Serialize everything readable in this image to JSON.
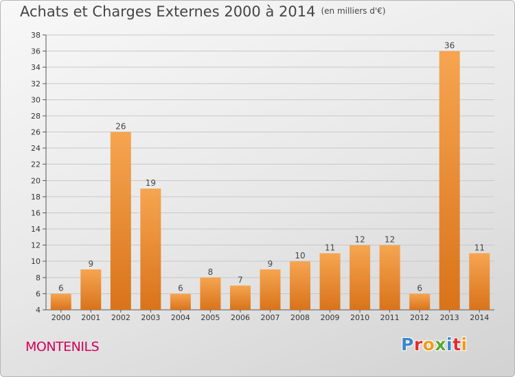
{
  "header": {
    "title": "Achats et Charges Externes 2000 à 2014",
    "unit": "(en milliers d'€)"
  },
  "footer": {
    "commune": "MONTENILS",
    "logo": [
      "P",
      "r",
      "o",
      "x",
      "i",
      "t",
      "i"
    ],
    "logo_colors": [
      "#3b87c8",
      "#e0302b",
      "#f19a1b",
      "#5aa82e",
      "#3b87c8",
      "#e0302b",
      "#f19a1b"
    ]
  },
  "chart_data": {
    "type": "bar",
    "categories": [
      "2000",
      "2001",
      "2002",
      "2003",
      "2004",
      "2005",
      "2006",
      "2007",
      "2008",
      "2009",
      "2010",
      "2011",
      "2012",
      "2013",
      "2014"
    ],
    "values": [
      6,
      9,
      26,
      19,
      6,
      8,
      7,
      9,
      10,
      11,
      12,
      12,
      6,
      36,
      11
    ],
    "ylim": [
      4,
      38
    ],
    "yticks": [
      4,
      6,
      8,
      10,
      12,
      14,
      16,
      18,
      20,
      22,
      24,
      26,
      28,
      30,
      32,
      34,
      36,
      38
    ],
    "grid": true,
    "bar_color": "#f0922e"
  }
}
